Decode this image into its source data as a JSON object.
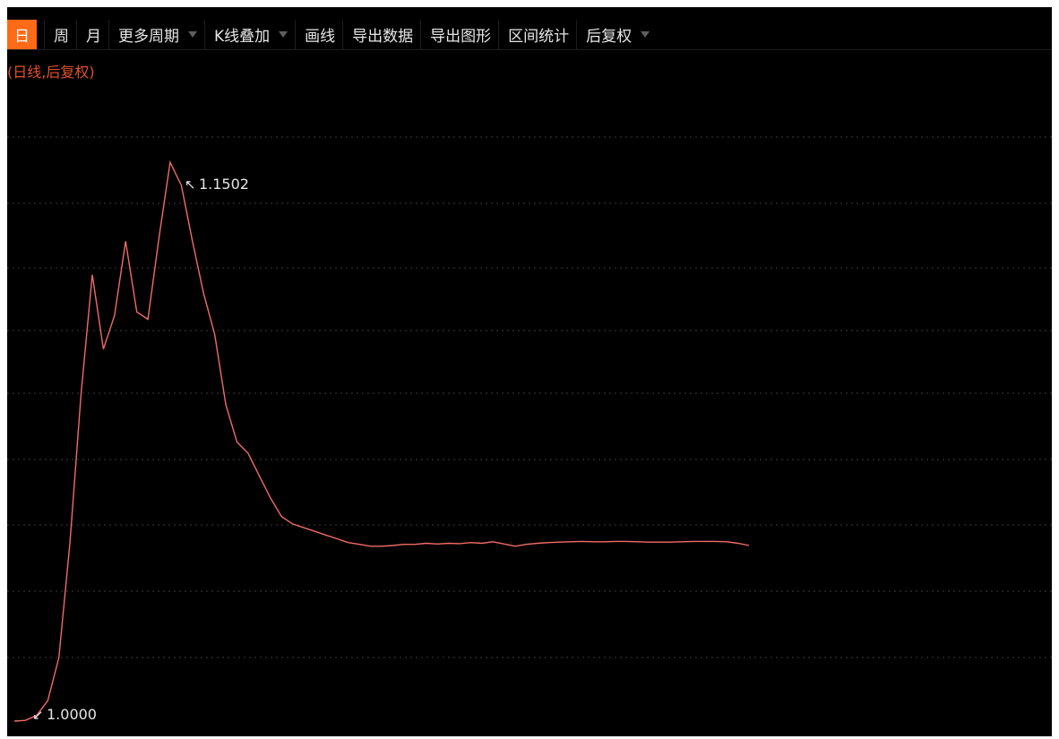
{
  "toolbar": {
    "items": [
      {
        "label": "日",
        "active": true,
        "dropdown": false
      },
      {
        "label": "周",
        "active": false,
        "dropdown": false
      },
      {
        "label": "月",
        "active": false,
        "dropdown": false
      },
      {
        "label": "更多周期",
        "active": false,
        "dropdown": true
      },
      {
        "label": "K线叠加",
        "active": false,
        "dropdown": true
      },
      {
        "label": "画线",
        "active": false,
        "dropdown": false
      },
      {
        "label": "导出数据",
        "active": false,
        "dropdown": false
      },
      {
        "label": "导出图形",
        "active": false,
        "dropdown": false
      },
      {
        "label": "区间统计",
        "active": false,
        "dropdown": false
      },
      {
        "label": "后复权",
        "active": false,
        "dropdown": true
      }
    ]
  },
  "chart_header": {
    "subtitle": "(日线,后复权)"
  },
  "chart_data": {
    "type": "line",
    "title": "",
    "xlabel": "",
    "ylabel": "",
    "grid": true,
    "ylim": [
      1.0,
      1.157
    ],
    "series": [
      {
        "values": [
          1.0,
          1.0002,
          1.0015,
          1.0055,
          1.017,
          1.048,
          1.088,
          1.12,
          1.1,
          1.109,
          1.129,
          1.11,
          1.108,
          1.13,
          1.1502,
          1.144,
          1.129,
          1.115,
          1.104,
          1.085,
          1.075,
          1.072,
          1.066,
          1.06,
          1.055,
          1.053,
          1.052,
          1.051,
          1.05,
          1.049,
          1.048,
          1.0475,
          1.047,
          1.047,
          1.0472,
          1.0475,
          1.0475,
          1.0478,
          1.0476,
          1.0478,
          1.0477,
          1.048,
          1.0478,
          1.0482,
          1.0476,
          1.047,
          1.0475,
          1.0478,
          1.048,
          1.0481,
          1.0482,
          1.0483,
          1.0482,
          1.0482,
          1.0483,
          1.0483,
          1.0482,
          1.0481,
          1.0481,
          1.0481,
          1.0482,
          1.0483,
          1.0483,
          1.0483,
          1.0482,
          1.0478,
          1.0472
        ]
      }
    ],
    "annotations": {
      "max_label": "1.1502",
      "min_label": "1.0000"
    },
    "colors": {
      "line": "#f26b68",
      "background": "#000000",
      "grid": "#3c3c3c",
      "active_tab": "#ff6a17",
      "subtitle": "#e2522b"
    }
  }
}
